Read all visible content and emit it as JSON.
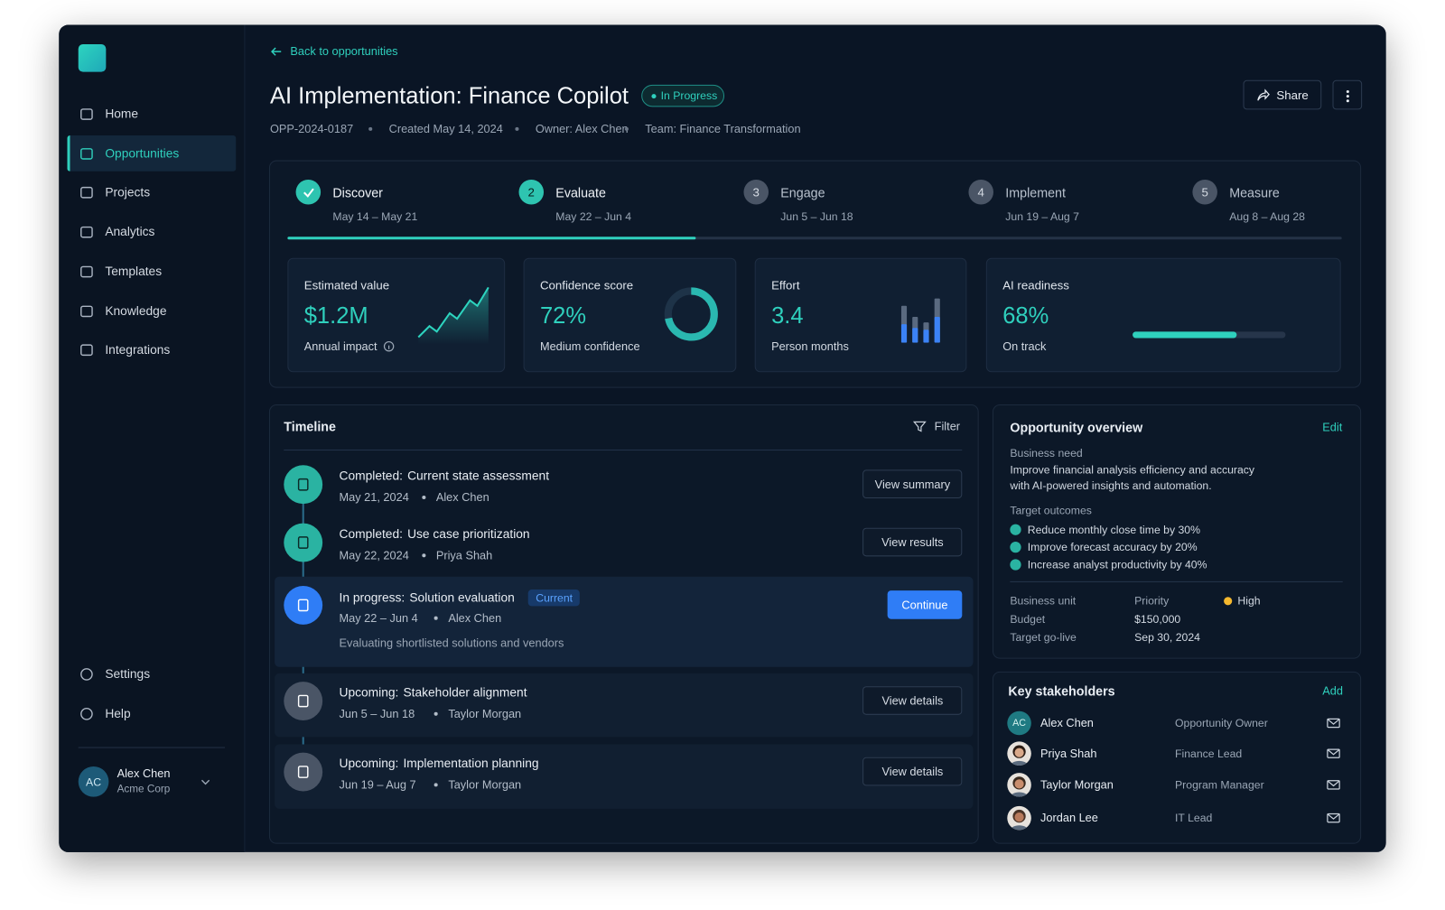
{
  "sidebar": {
    "nav": [
      {
        "label": "Home"
      },
      {
        "label": "Opportunities",
        "active": true
      },
      {
        "label": "Projects"
      },
      {
        "label": "Analytics"
      },
      {
        "label": "Templates"
      },
      {
        "label": "Knowledge"
      },
      {
        "label": "Integrations"
      }
    ],
    "footer_nav": [
      "Settings",
      "Help"
    ],
    "user": {
      "initials": "AC",
      "name": "Alex Chen",
      "org": "Acme Corp"
    }
  },
  "header": {
    "back": "Back to opportunities",
    "title": "AI Implementation: Finance Copilot",
    "status": "In Progress",
    "meta": [
      "OPP-2024-0187",
      "Created May 14, 2024",
      "Owner: Alex Chen",
      "Team: Finance Transformation"
    ],
    "share": "Share"
  },
  "stages": [
    {
      "name": "Discover",
      "dates": "May 14 – May 21",
      "state": "done"
    },
    {
      "step": 2,
      "name": "Evaluate",
      "dates": "May 22 – Jun 4",
      "state": "current"
    },
    {
      "step": 3,
      "name": "Engage",
      "dates": "Jun 5 – Jun 18",
      "state": "upcoming"
    },
    {
      "step": 4,
      "name": "Implement",
      "dates": "Jun 19 – Aug 7",
      "state": "upcoming"
    },
    {
      "step": 5,
      "name": "Measure",
      "dates": "Aug 8 – Aug 28",
      "state": "upcoming"
    }
  ],
  "metrics": [
    {
      "label": "Estimated value",
      "value": "$1.2M",
      "caption": "Annual impact"
    },
    {
      "label": "Confidence score",
      "value": "72%",
      "percent": 72,
      "caption": "Medium confidence"
    },
    {
      "label": "Effort",
      "value": "3.4",
      "caption": "Person months"
    },
    {
      "label": "AI readiness",
      "value": "68%",
      "percent": 68,
      "caption": "On track"
    }
  ],
  "timeline": {
    "title": "Timeline",
    "filter": "Filter",
    "items": [
      {
        "state": "done",
        "status": "Completed:",
        "title": "Current state assessment",
        "date": "May 21, 2024",
        "person": "Alex Chen",
        "action": "View summary"
      },
      {
        "state": "done",
        "status": "Completed:",
        "title": "Use case prioritization",
        "date": "May 22, 2024",
        "person": "Priya Shah",
        "action": "View results"
      },
      {
        "state": "current",
        "status": "In progress:",
        "title": "Solution evaluation",
        "badge": "Current",
        "date": "May 22 – Jun 4",
        "person": "Alex Chen",
        "description": "Evaluating shortlisted solutions and vendors",
        "action": "Continue"
      },
      {
        "state": "upcoming",
        "status": "Upcoming:",
        "title": "Stakeholder alignment",
        "date": "Jun 5 – Jun 18",
        "person": "Taylor Morgan",
        "action": "View details"
      },
      {
        "state": "upcoming",
        "status": "Upcoming:",
        "title": "Implementation planning",
        "date": "Jun 19 – Aug 7",
        "person": "Taylor Morgan",
        "action": "View details"
      }
    ]
  },
  "overview": {
    "title": "Opportunity overview",
    "edit": "Edit",
    "need_label": "Business need",
    "need": "Improve financial analysis efficiency and accuracy with AI-powered insights and automation.",
    "outcomes_label": "Target outcomes",
    "outcomes": [
      "Reduce monthly close time by 30%",
      "Improve forecast accuracy by 20%",
      "Increase analyst productivity by 40%"
    ],
    "rows": [
      [
        "Business unit",
        "Priority",
        "High"
      ],
      [
        "Budget",
        "$150,000"
      ],
      [
        "Target go-live",
        "Sep 30, 2024"
      ]
    ]
  },
  "stakeholders": {
    "title": "Key stakeholders",
    "add": "Add",
    "people": [
      {
        "initials": "AC",
        "name": "Alex Chen",
        "role": "Opportunity Owner"
      },
      {
        "name": "Priya Shah",
        "role": "Finance Lead"
      },
      {
        "name": "Taylor Morgan",
        "role": "Program Manager"
      },
      {
        "name": "Jordan Lee",
        "role": "IT Lead"
      }
    ]
  }
}
